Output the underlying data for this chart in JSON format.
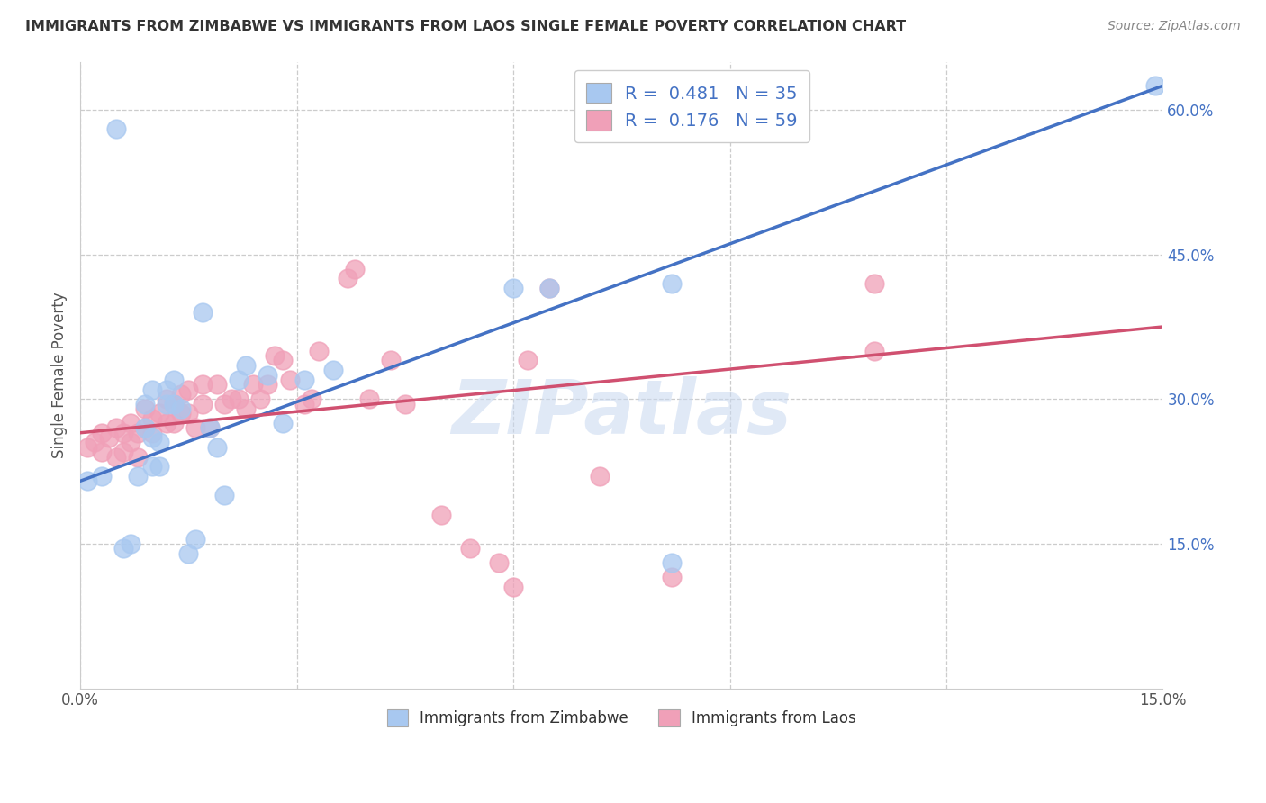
{
  "title": "IMMIGRANTS FROM ZIMBABWE VS IMMIGRANTS FROM LAOS SINGLE FEMALE POVERTY CORRELATION CHART",
  "source": "Source: ZipAtlas.com",
  "ylabel": "Single Female Poverty",
  "xlim": [
    0.0,
    0.15
  ],
  "ylim": [
    0.0,
    0.65
  ],
  "x_tick_positions": [
    0.0,
    0.03,
    0.06,
    0.09,
    0.12,
    0.15
  ],
  "x_tick_labels": [
    "0.0%",
    "",
    "",
    "",
    "",
    "15.0%"
  ],
  "y_ticks_right": [
    0.15,
    0.3,
    0.45,
    0.6
  ],
  "y_tick_labels_right": [
    "15.0%",
    "30.0%",
    "45.0%",
    "60.0%"
  ],
  "legend_labels": [
    "Immigrants from Zimbabwe",
    "Immigrants from Laos"
  ],
  "r_zimbabwe": 0.481,
  "n_zimbabwe": 35,
  "r_laos": 0.176,
  "n_laos": 59,
  "blue_color": "#A8C8F0",
  "pink_color": "#F0A0B8",
  "blue_line_color": "#4472C4",
  "pink_line_color": "#D05070",
  "watermark": "ZIPatlas",
  "blue_line_x0": 0.0,
  "blue_line_y0": 0.215,
  "blue_line_x1": 0.15,
  "blue_line_y1": 0.625,
  "pink_line_x0": 0.0,
  "pink_line_y0": 0.265,
  "pink_line_x1": 0.15,
  "pink_line_y1": 0.375,
  "zimbabwe_x": [
    0.001,
    0.003,
    0.005,
    0.006,
    0.007,
    0.008,
    0.009,
    0.009,
    0.01,
    0.01,
    0.01,
    0.011,
    0.011,
    0.012,
    0.012,
    0.013,
    0.013,
    0.014,
    0.015,
    0.016,
    0.017,
    0.018,
    0.019,
    0.02,
    0.022,
    0.023,
    0.026,
    0.028,
    0.031,
    0.035,
    0.06,
    0.065,
    0.082,
    0.082,
    0.149
  ],
  "zimbabwe_y": [
    0.215,
    0.22,
    0.58,
    0.145,
    0.15,
    0.22,
    0.27,
    0.295,
    0.23,
    0.26,
    0.31,
    0.23,
    0.255,
    0.295,
    0.31,
    0.295,
    0.32,
    0.29,
    0.14,
    0.155,
    0.39,
    0.27,
    0.25,
    0.2,
    0.32,
    0.335,
    0.325,
    0.275,
    0.32,
    0.33,
    0.415,
    0.415,
    0.42,
    0.13,
    0.625
  ],
  "laos_x": [
    0.001,
    0.002,
    0.003,
    0.003,
    0.004,
    0.005,
    0.005,
    0.006,
    0.006,
    0.007,
    0.007,
    0.008,
    0.008,
    0.009,
    0.009,
    0.01,
    0.01,
    0.011,
    0.012,
    0.012,
    0.013,
    0.013,
    0.014,
    0.014,
    0.015,
    0.015,
    0.016,
    0.017,
    0.017,
    0.018,
    0.019,
    0.02,
    0.021,
    0.022,
    0.023,
    0.024,
    0.025,
    0.026,
    0.027,
    0.028,
    0.029,
    0.031,
    0.032,
    0.033,
    0.037,
    0.038,
    0.04,
    0.043,
    0.045,
    0.05,
    0.054,
    0.058,
    0.06,
    0.062,
    0.065,
    0.072,
    0.082,
    0.11,
    0.11
  ],
  "laos_y": [
    0.25,
    0.255,
    0.245,
    0.265,
    0.26,
    0.24,
    0.27,
    0.245,
    0.265,
    0.255,
    0.275,
    0.24,
    0.265,
    0.27,
    0.29,
    0.265,
    0.28,
    0.285,
    0.275,
    0.3,
    0.275,
    0.295,
    0.285,
    0.305,
    0.285,
    0.31,
    0.27,
    0.295,
    0.315,
    0.27,
    0.315,
    0.295,
    0.3,
    0.3,
    0.29,
    0.315,
    0.3,
    0.315,
    0.345,
    0.34,
    0.32,
    0.295,
    0.3,
    0.35,
    0.425,
    0.435,
    0.3,
    0.34,
    0.295,
    0.18,
    0.145,
    0.13,
    0.105,
    0.34,
    0.415,
    0.22,
    0.115,
    0.35,
    0.42
  ]
}
